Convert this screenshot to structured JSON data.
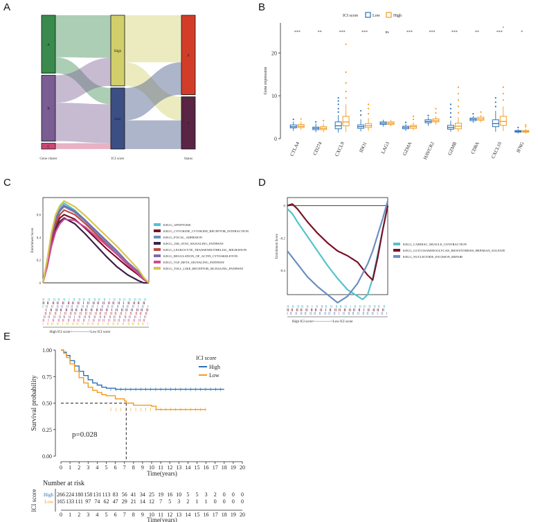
{
  "panels": {
    "a": "A",
    "b": "B",
    "c": "C",
    "d": "D",
    "e": "E"
  },
  "chart_data": [
    {
      "type": "sankey",
      "panel": "A",
      "axes": [
        "Gene cluster",
        "ICI score",
        "Status"
      ],
      "nodes": [
        {
          "axis": 0,
          "label": "A",
          "value": 80,
          "color": "#3a8a4e"
        },
        {
          "axis": 0,
          "label": "B",
          "value": 91,
          "color": "#7a5d93"
        },
        {
          "axis": 0,
          "label": "C",
          "value": 8,
          "color": "#c84872"
        },
        {
          "axis": 1,
          "label": "High",
          "value": 96,
          "color": "#d2cf6a"
        },
        {
          "axis": 1,
          "label": "Low",
          "value": 83,
          "color": "#3b4f84"
        },
        {
          "axis": 2,
          "label": "0",
          "value": 108,
          "color": "#d23d2a"
        },
        {
          "axis": 2,
          "label": "1",
          "value": 71,
          "color": "#5a2444"
        }
      ],
      "flows12": [
        {
          "from": "A",
          "to": "High",
          "value": 58
        },
        {
          "from": "A",
          "to": "Low",
          "value": 22
        },
        {
          "from": "B",
          "to": "High",
          "value": 38
        },
        {
          "from": "B",
          "to": "Low",
          "value": 53
        },
        {
          "from": "C",
          "to": "Low",
          "value": 8
        }
      ],
      "flows23": [
        {
          "from": "High",
          "to": "0",
          "value": 64
        },
        {
          "from": "High",
          "to": "1",
          "value": 32
        },
        {
          "from": "Low",
          "to": "0",
          "value": 44
        },
        {
          "from": "Low",
          "to": "1",
          "value": 39
        }
      ]
    },
    {
      "type": "box",
      "panel": "B",
      "legend_title": "ICI score",
      "legend": [
        {
          "name": "Low",
          "color": "#2b6fb6"
        },
        {
          "name": "High",
          "color": "#f39a1f"
        }
      ],
      "ylabel": "Gene expression",
      "ylim": [
        0,
        27
      ],
      "yticks": [
        0,
        10,
        20
      ],
      "categories": [
        "CTLA4",
        "CD274",
        "CXCL9",
        "IDO1",
        "LAG3",
        "GZMA",
        "HAVCR2",
        "GZMB",
        "CD8A",
        "CXCL10",
        "IFNG"
      ],
      "significance": [
        "***",
        "**",
        "***",
        "***",
        "ns",
        "***",
        "***",
        "***",
        "**",
        "***",
        "*"
      ],
      "series": [
        {
          "name": "Low",
          "boxes": [
            {
              "q1": 2.5,
              "med": 2.8,
              "q3": 3.2,
              "wmin": 1.8,
              "wmax": 4.0,
              "out": [
                4.5
              ]
            },
            {
              "q1": 2.1,
              "med": 2.4,
              "q3": 2.7,
              "wmin": 1.5,
              "wmax": 3.5,
              "out": [
                3.9
              ]
            },
            {
              "q1": 2.3,
              "med": 3.0,
              "q3": 3.9,
              "wmin": 1.4,
              "wmax": 5.5,
              "out": [
                6.2,
                7.0,
                8.0,
                8.8,
                9.5
              ]
            },
            {
              "q1": 2.4,
              "med": 2.8,
              "q3": 3.2,
              "wmin": 1.7,
              "wmax": 4.5,
              "out": [
                5.5,
                6.5
              ]
            },
            {
              "q1": 3.3,
              "med": 3.6,
              "q3": 3.9,
              "wmin": 2.8,
              "wmax": 4.4,
              "out": []
            },
            {
              "q1": 2.3,
              "med": 2.6,
              "q3": 2.9,
              "wmin": 1.8,
              "wmax": 3.4,
              "out": [
                3.8
              ]
            },
            {
              "q1": 3.7,
              "med": 4.0,
              "q3": 4.4,
              "wmin": 3.0,
              "wmax": 5.0,
              "out": [
                5.4
              ]
            },
            {
              "q1": 2.2,
              "med": 2.6,
              "q3": 3.1,
              "wmin": 1.6,
              "wmax": 4.2,
              "out": [
                5.0,
                6.0,
                7.0,
                8.0
              ]
            },
            {
              "q1": 4.2,
              "med": 4.5,
              "q3": 4.8,
              "wmin": 3.7,
              "wmax": 5.3,
              "out": [
                5.8
              ]
            },
            {
              "q1": 2.8,
              "med": 3.5,
              "q3": 4.4,
              "wmin": 1.6,
              "wmax": 6.5,
              "out": [
                7.5,
                8.5,
                9.5
              ]
            },
            {
              "q1": 1.5,
              "med": 1.7,
              "q3": 1.9,
              "wmin": 1.2,
              "wmax": 2.2,
              "out": [
                2.6
              ]
            }
          ]
        },
        {
          "name": "High",
          "boxes": [
            {
              "q1": 2.6,
              "med": 2.9,
              "q3": 3.3,
              "wmin": 2.0,
              "wmax": 4.0,
              "out": [
                4.6
              ]
            },
            {
              "q1": 2.1,
              "med": 2.4,
              "q3": 2.8,
              "wmin": 1.5,
              "wmax": 3.6,
              "out": [
                4.2
              ]
            },
            {
              "q1": 3.0,
              "med": 3.9,
              "q3": 5.2,
              "wmin": 1.6,
              "wmax": 8.0,
              "out": [
                9.5,
                11.0,
                13.0,
                15.5,
                22.0
              ]
            },
            {
              "q1": 2.6,
              "med": 3.0,
              "q3": 3.5,
              "wmin": 1.8,
              "wmax": 4.8,
              "out": [
                5.8,
                7.0,
                8.0
              ]
            },
            {
              "q1": 3.3,
              "med": 3.6,
              "q3": 3.9,
              "wmin": 2.9,
              "wmax": 4.4,
              "out": []
            },
            {
              "q1": 2.4,
              "med": 2.8,
              "q3": 3.1,
              "wmin": 1.9,
              "wmax": 3.8,
              "out": [
                4.5,
                5.2
              ]
            },
            {
              "q1": 3.9,
              "med": 4.2,
              "q3": 4.6,
              "wmin": 3.2,
              "wmax": 5.2,
              "out": [
                6.0,
                7.0
              ]
            },
            {
              "q1": 2.3,
              "med": 2.9,
              "q3": 3.6,
              "wmin": 1.6,
              "wmax": 5.0,
              "out": [
                6.0,
                7.5,
                9.0,
                10.5,
                12.0
              ]
            },
            {
              "q1": 4.3,
              "med": 4.6,
              "q3": 5.0,
              "wmin": 3.8,
              "wmax": 5.5,
              "out": [
                6.2
              ]
            },
            {
              "q1": 3.1,
              "med": 4.0,
              "q3": 5.2,
              "wmin": 1.8,
              "wmax": 7.5,
              "out": [
                9.0,
                10.5,
                12.0,
                26.0
              ]
            },
            {
              "q1": 1.5,
              "med": 1.7,
              "q3": 1.9,
              "wmin": 1.2,
              "wmax": 2.3,
              "out": [
                2.8,
                3.2
              ]
            }
          ]
        }
      ]
    },
    {
      "type": "line",
      "panel": "C",
      "ylabel": "Enrichment Score",
      "xlabel": "High ICI score<-------------->Low ICI score",
      "ylim": [
        0,
        0.75
      ],
      "yticks": [
        0,
        0.2,
        0.4,
        0.6
      ],
      "x": [
        0,
        0.04,
        0.08,
        0.12,
        0.16,
        0.2,
        0.3,
        0.4,
        0.5,
        0.6,
        0.7,
        0.8,
        0.9,
        0.95,
        1
      ],
      "series": [
        {
          "name": "KEGG_APOPTOSIS",
          "color": "#52c3cf",
          "values": [
            0,
            0.2,
            0.42,
            0.58,
            0.66,
            0.7,
            0.64,
            0.55,
            0.45,
            0.36,
            0.27,
            0.17,
            0.09,
            0.04,
            0
          ]
        },
        {
          "name": "KEGG_CYTOKINE_CYTOKINE_RECEPTOR_INTERACTION",
          "color": "#7a1027",
          "values": [
            0,
            0.16,
            0.36,
            0.5,
            0.57,
            0.6,
            0.56,
            0.48,
            0.39,
            0.3,
            0.22,
            0.14,
            0.07,
            0.03,
            0
          ]
        },
        {
          "name": "KEGG_FOCAL_ADHESION",
          "color": "#6b8fbf",
          "values": [
            0,
            0.18,
            0.4,
            0.55,
            0.63,
            0.67,
            0.62,
            0.54,
            0.44,
            0.35,
            0.26,
            0.17,
            0.09,
            0.04,
            0
          ]
        },
        {
          "name": "KEGG_JAK_STAT_SIGNALING_PATHWAY",
          "color": "#3a1f47",
          "values": [
            0,
            0.15,
            0.34,
            0.47,
            0.54,
            0.57,
            0.52,
            0.43,
            0.33,
            0.23,
            0.14,
            0.07,
            0.02,
            0,
            0
          ]
        },
        {
          "name": "KEGG_LEUKOCYTE_TRANSENDOTHELIAL_MIGRATION",
          "color": "#c24a43",
          "values": [
            0,
            0.17,
            0.38,
            0.52,
            0.6,
            0.64,
            0.6,
            0.52,
            0.43,
            0.34,
            0.25,
            0.16,
            0.08,
            0.03,
            0
          ]
        },
        {
          "name": "KEGG_REGULATION_OF_ACTIN_CYTOSKELETON",
          "color": "#7c6aa8",
          "values": [
            0,
            0.19,
            0.41,
            0.56,
            0.64,
            0.68,
            0.63,
            0.55,
            0.46,
            0.37,
            0.28,
            0.18,
            0.1,
            0.04,
            0
          ]
        },
        {
          "name": "KEGG_TGF_BETA_SIGNALING_PATHWAY",
          "color": "#d4479a",
          "values": [
            0,
            0.14,
            0.32,
            0.45,
            0.52,
            0.56,
            0.55,
            0.49,
            0.41,
            0.33,
            0.25,
            0.16,
            0.08,
            0.03,
            0
          ]
        },
        {
          "name": "KEGG_TOLL_LIKE_RECEPTOR_SIGNALING_PATHWAY",
          "color": "#d8c64a",
          "values": [
            0,
            0.2,
            0.44,
            0.6,
            0.68,
            0.72,
            0.67,
            0.59,
            0.5,
            0.41,
            0.32,
            0.22,
            0.12,
            0.05,
            0
          ]
        }
      ]
    },
    {
      "type": "line",
      "panel": "D",
      "ylabel": "Enrichment Score",
      "xlabel": "High ICI score<-------------->Low ICI score",
      "ylim": [
        -0.55,
        0.05
      ],
      "yticks": [
        0,
        -0.2,
        -0.4
      ],
      "x": [
        0,
        0.05,
        0.1,
        0.2,
        0.3,
        0.4,
        0.5,
        0.6,
        0.7,
        0.75,
        0.8,
        0.85,
        0.9,
        0.95,
        1
      ],
      "series": [
        {
          "name": "KEGG_CARDIAC_MUSCLE_CONTRACTION",
          "color": "#52c3cf",
          "values": [
            -0.02,
            -0.05,
            -0.1,
            -0.19,
            -0.28,
            -0.37,
            -0.45,
            -0.52,
            -0.56,
            -0.58,
            -0.55,
            -0.45,
            -0.3,
            -0.15,
            0
          ]
        },
        {
          "name": "KEGG_GLYCOSAMINOGLYCAN_BIOSYNTHESIS_HEPARAN_SULFATE",
          "color": "#7a1027",
          "values": [
            0,
            0.01,
            -0.02,
            -0.1,
            -0.17,
            -0.23,
            -0.28,
            -0.31,
            -0.35,
            -0.39,
            -0.43,
            -0.46,
            -0.32,
            -0.15,
            0
          ]
        },
        {
          "name": "KEGG_NUCLEOTIDE_EXCISION_REPAIR",
          "color": "#6b8fbf",
          "values": [
            -0.28,
            -0.32,
            -0.36,
            -0.44,
            -0.5,
            -0.55,
            -0.6,
            -0.56,
            -0.48,
            -0.42,
            -0.36,
            -0.28,
            -0.18,
            -0.08,
            0.03
          ]
        }
      ]
    },
    {
      "type": "line",
      "panel": "E",
      "subtype": "kaplan-meier",
      "legend_title": "ICI score",
      "ylabel": "Survival probability",
      "xlabel": "Time(years)",
      "xlim": [
        0,
        20
      ],
      "ylim": [
        0,
        1
      ],
      "xticks": [
        0,
        1,
        2,
        3,
        4,
        5,
        6,
        7,
        8,
        9,
        10,
        11,
        12,
        13,
        14,
        15,
        16,
        17,
        18,
        19,
        20
      ],
      "yticks": [
        "0.00",
        "0.25",
        "0.50",
        "0.75",
        "1.00"
      ],
      "pvalue": "p=0.028",
      "median_survival_years": 7.2,
      "series": [
        {
          "name": "High",
          "color": "#2b6fb6",
          "x": [
            0,
            0.3,
            0.6,
            1,
            1.5,
            2,
            2.5,
            3,
            3.5,
            4,
            4.5,
            5,
            6,
            7,
            8,
            10,
            12,
            14,
            16,
            18
          ],
          "values": [
            1.0,
            0.98,
            0.95,
            0.9,
            0.85,
            0.8,
            0.76,
            0.72,
            0.69,
            0.67,
            0.65,
            0.64,
            0.63,
            0.63,
            0.63,
            0.63,
            0.63,
            0.63,
            0.63,
            0.63
          ]
        },
        {
          "name": "Low",
          "color": "#f39a1f",
          "x": [
            0,
            0.3,
            0.6,
            1,
            1.5,
            2,
            2.5,
            3,
            3.5,
            4,
            4.5,
            5,
            6,
            7,
            7.2,
            8,
            10,
            10.5,
            12,
            14,
            16
          ],
          "values": [
            1.0,
            0.97,
            0.93,
            0.87,
            0.8,
            0.74,
            0.69,
            0.65,
            0.62,
            0.6,
            0.58,
            0.57,
            0.54,
            0.52,
            0.5,
            0.48,
            0.47,
            0.44,
            0.44,
            0.44,
            0.44
          ]
        }
      ],
      "risk_table": {
        "title": "Number at risk",
        "ylabel": "ICI score",
        "rows": [
          {
            "name": "High",
            "color": "#2b6fb6",
            "counts": [
              266,
              224,
              180,
              158,
              131,
              113,
              83,
              56,
              41,
              34,
              25,
              19,
              16,
              10,
              5,
              5,
              3,
              2,
              0,
              0,
              0
            ]
          },
          {
            "name": "Low",
            "color": "#f39a1f",
            "counts": [
              165,
              133,
              111,
              97,
              74,
              62,
              47,
              29,
              21,
              14,
              12,
              7,
              5,
              3,
              2,
              1,
              1,
              0,
              0,
              0,
              0
            ]
          }
        ]
      }
    }
  ]
}
